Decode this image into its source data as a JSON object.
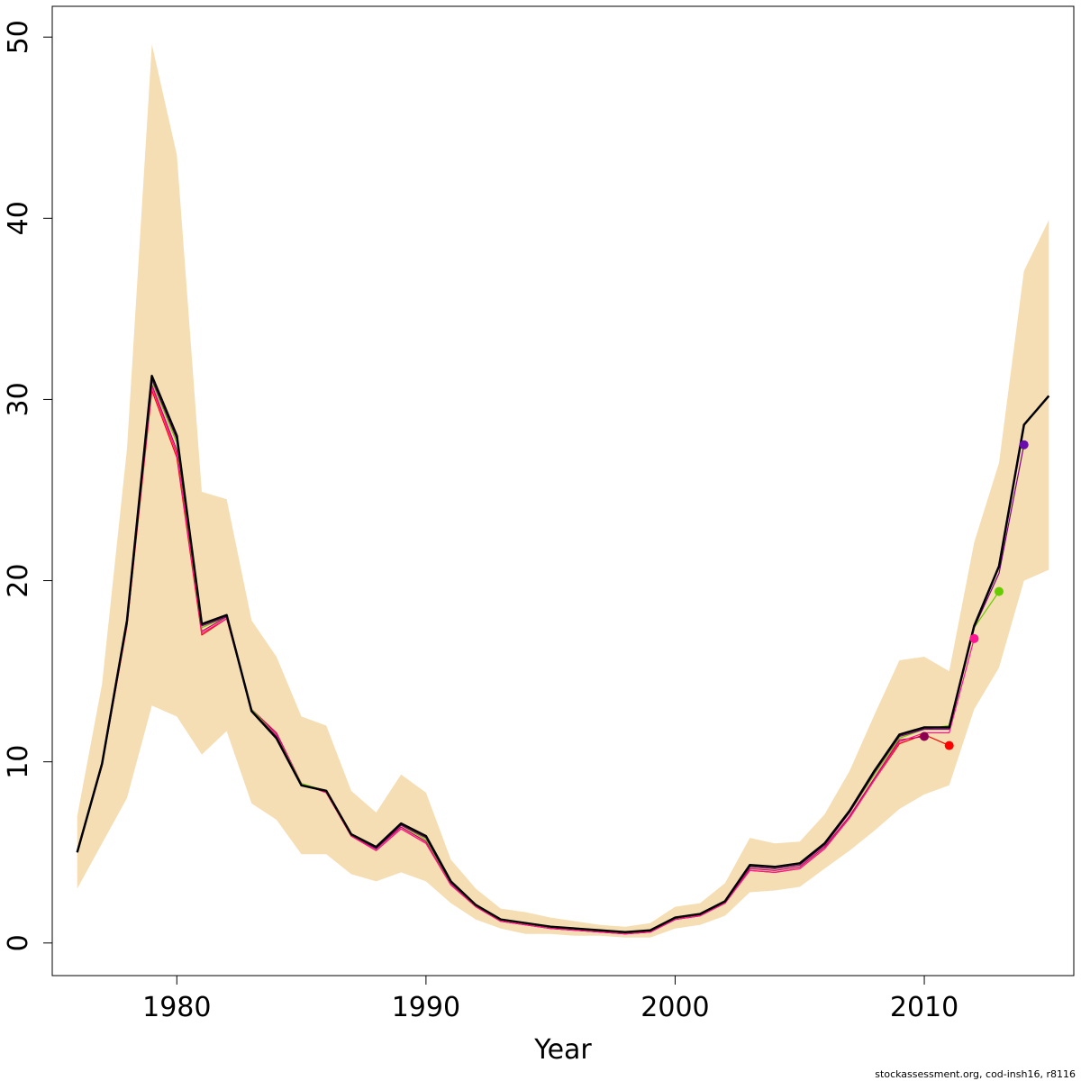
{
  "chart_data": {
    "type": "line",
    "title": "",
    "xlabel": "Year",
    "ylabel": "",
    "xlim": [
      1975,
      2016
    ],
    "ylim": [
      -1.8,
      51.7
    ],
    "x_ticks": [
      1980,
      1990,
      2000,
      2010
    ],
    "y_ticks": [
      0,
      10,
      20,
      30,
      40,
      50
    ],
    "grid": false,
    "legend": "none",
    "band": {
      "color": "#f5deb3",
      "x": [
        1976,
        1977,
        1978,
        1979,
        1980,
        1981,
        1982,
        1983,
        1984,
        1985,
        1986,
        1987,
        1988,
        1989,
        1990,
        1991,
        1992,
        1993,
        1994,
        1995,
        1996,
        1997,
        1998,
        1999,
        2000,
        2001,
        2002,
        2003,
        2004,
        2005,
        2006,
        2007,
        2008,
        2009,
        2010,
        2011,
        2012,
        2013,
        2014,
        2015
      ],
      "upper": [
        7.0,
        14.3,
        27.3,
        49.6,
        43.5,
        24.9,
        24.5,
        17.8,
        15.8,
        12.5,
        12.0,
        8.4,
        7.2,
        9.3,
        8.3,
        4.6,
        3.0,
        1.9,
        1.7,
        1.4,
        1.2,
        1.0,
        0.9,
        1.1,
        2.0,
        2.2,
        3.3,
        5.8,
        5.5,
        5.6,
        7.1,
        9.5,
        12.6,
        15.6,
        15.8,
        15.0,
        22.1,
        26.5,
        37.1,
        39.9
      ],
      "lower": [
        3.0,
        5.5,
        8.0,
        13.1,
        12.5,
        10.4,
        11.7,
        7.7,
        6.8,
        4.9,
        4.9,
        3.8,
        3.4,
        3.9,
        3.4,
        2.2,
        1.3,
        0.8,
        0.5,
        0.5,
        0.4,
        0.4,
        0.3,
        0.3,
        0.8,
        1.0,
        1.5,
        2.8,
        2.9,
        3.1,
        4.1,
        5.1,
        6.2,
        7.4,
        8.2,
        8.7,
        12.9,
        15.2,
        20.0,
        20.6
      ]
    },
    "series": [
      {
        "color": "#000000",
        "x": [
          1976,
          1977,
          1978,
          1979,
          1980,
          1981,
          1982,
          1983,
          1984,
          1985,
          1986,
          1987,
          1988,
          1989,
          1990,
          1991,
          1992,
          1993,
          1994,
          1995,
          1996,
          1997,
          1998,
          1999,
          2000,
          2001,
          2002,
          2003,
          2004,
          2005,
          2006,
          2007,
          2008,
          2009,
          2010,
          2011,
          2012,
          2013,
          2014,
          2015
        ],
        "values": [
          5.0,
          9.9,
          17.8,
          31.3,
          28.0,
          17.6,
          18.1,
          12.8,
          11.3,
          8.7,
          8.4,
          6.0,
          5.3,
          6.6,
          5.9,
          3.4,
          2.1,
          1.3,
          1.1,
          0.9,
          0.8,
          0.7,
          0.6,
          0.7,
          1.4,
          1.6,
          2.3,
          4.3,
          4.2,
          4.4,
          5.5,
          7.3,
          9.5,
          11.5,
          11.9,
          11.9,
          17.5,
          20.8,
          28.6,
          30.2
        ]
      },
      {
        "color": "#ff0000",
        "x": [
          1976,
          1977,
          1978,
          1979,
          1980,
          1981,
          1982,
          1983,
          1984,
          1985,
          1986,
          1987,
          1988,
          1989,
          1990,
          1991,
          1992,
          1993,
          1994,
          1995,
          1996,
          1997,
          1998,
          1999,
          2000,
          2001,
          2002,
          2003,
          2004,
          2005,
          2006,
          2007,
          2008,
          2009,
          2010,
          2011
        ],
        "values": [
          5.0,
          9.8,
          17.5,
          30.5,
          26.8,
          17.0,
          17.9,
          12.9,
          11.5,
          8.8,
          8.3,
          5.9,
          5.1,
          6.3,
          5.5,
          3.2,
          2.0,
          1.2,
          1.0,
          0.8,
          0.7,
          0.6,
          0.5,
          0.6,
          1.3,
          1.5,
          2.2,
          4.0,
          3.9,
          4.1,
          5.2,
          6.9,
          9.0,
          11.0,
          11.5,
          10.9
        ]
      },
      {
        "color": "#c00060",
        "x": [
          1976,
          1977,
          1978,
          1979,
          1980,
          1981,
          1982,
          1983,
          1984,
          1985,
          1986,
          1987,
          1988,
          1989,
          1990,
          1991,
          1992,
          1993,
          1994,
          1995,
          1996,
          1997,
          1998,
          1999,
          2000,
          2001,
          2002,
          2003,
          2004,
          2005,
          2006,
          2007,
          2008,
          2009,
          2010
        ],
        "values": [
          5.0,
          9.8,
          17.6,
          30.8,
          27.2,
          17.2,
          18.0,
          12.9,
          11.6,
          8.8,
          8.3,
          5.9,
          5.2,
          6.4,
          5.6,
          3.3,
          2.0,
          1.2,
          1.0,
          0.8,
          0.7,
          0.6,
          0.5,
          0.6,
          1.3,
          1.5,
          2.2,
          4.1,
          4.0,
          4.2,
          5.3,
          7.0,
          9.1,
          11.2,
          11.4
        ]
      },
      {
        "color": "#ff1493",
        "x": [
          1976,
          1977,
          1978,
          1979,
          1980,
          1981,
          1982,
          1983,
          1984,
          1985,
          1986,
          1987,
          1988,
          1989,
          1990,
          1991,
          1992,
          1993,
          1994,
          1995,
          1996,
          1997,
          1998,
          1999,
          2000,
          2001,
          2002,
          2003,
          2004,
          2005,
          2006,
          2007,
          2008,
          2009,
          2010,
          2011,
          2012
        ],
        "values": [
          5.0,
          9.8,
          17.6,
          30.7,
          27.0,
          17.1,
          17.9,
          12.9,
          11.5,
          8.8,
          8.3,
          5.9,
          5.1,
          6.3,
          5.5,
          3.2,
          2.0,
          1.2,
          1.0,
          0.8,
          0.7,
          0.6,
          0.5,
          0.6,
          1.3,
          1.5,
          2.2,
          4.0,
          3.9,
          4.1,
          5.2,
          6.9,
          9.0,
          11.1,
          11.6,
          11.6,
          16.8
        ]
      },
      {
        "color": "#66cc00",
        "x": [
          1976,
          1977,
          1978,
          1979,
          1980,
          1981,
          1982,
          1983,
          1984,
          1985,
          1986,
          1987,
          1988,
          1989,
          1990,
          1991,
          1992,
          1993,
          1994,
          1995,
          1996,
          1997,
          1998,
          1999,
          2000,
          2001,
          2002,
          2003,
          2004,
          2005,
          2006,
          2007,
          2008,
          2009,
          2010,
          2011,
          2012,
          2013
        ],
        "values": [
          5.0,
          9.9,
          17.7,
          31.0,
          27.6,
          17.4,
          18.0,
          12.9,
          11.4,
          8.8,
          8.4,
          6.0,
          5.2,
          6.5,
          5.7,
          3.3,
          2.1,
          1.3,
          1.1,
          0.9,
          0.8,
          0.7,
          0.6,
          0.7,
          1.4,
          1.6,
          2.3,
          4.2,
          4.1,
          4.3,
          5.4,
          7.2,
          9.3,
          11.3,
          11.8,
          12.0,
          17.4,
          19.4
        ]
      },
      {
        "color": "#800080",
        "x": [
          1976,
          1977,
          1978,
          1979,
          1980,
          1981,
          1982,
          1983,
          1984,
          1985,
          1986,
          1987,
          1988,
          1989,
          1990,
          1991,
          1992,
          1993,
          1994,
          1995,
          1996,
          1997,
          1998,
          1999,
          2000,
          2001,
          2002,
          2003,
          2004,
          2005,
          2006,
          2007,
          2008,
          2009,
          2010,
          2011,
          2012,
          2013,
          2014
        ],
        "values": [
          5.0,
          9.9,
          17.7,
          31.1,
          27.8,
          17.5,
          18.0,
          12.8,
          11.4,
          8.7,
          8.4,
          6.0,
          5.2,
          6.5,
          5.8,
          3.3,
          2.1,
          1.3,
          1.1,
          0.9,
          0.8,
          0.7,
          0.6,
          0.7,
          1.4,
          1.6,
          2.3,
          4.2,
          4.1,
          4.3,
          5.4,
          7.2,
          9.4,
          11.4,
          11.8,
          11.8,
          17.4,
          20.4,
          27.5
        ]
      }
    ],
    "endpoints": [
      {
        "color": "#8b0050",
        "x": 2010,
        "y": 11.4
      },
      {
        "color": "#ff0000",
        "x": 2011,
        "y": 10.9
      },
      {
        "color": "#ff1493",
        "x": 2012,
        "y": 16.8
      },
      {
        "color": "#66cc00",
        "x": 2013,
        "y": 19.4
      },
      {
        "color": "#6a0dad",
        "x": 2014,
        "y": 27.5
      }
    ]
  },
  "footer": "stockassessment.org, cod-insh16, r8116"
}
